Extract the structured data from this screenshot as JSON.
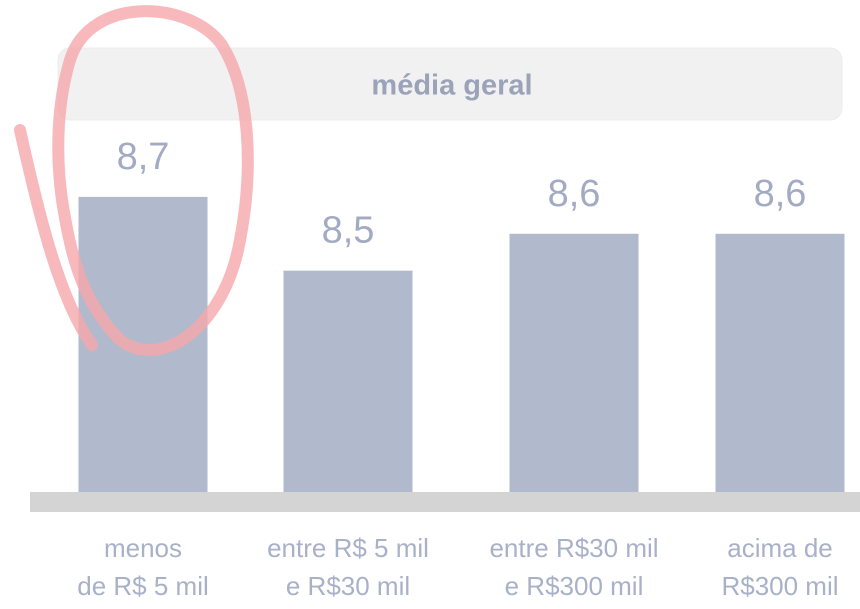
{
  "chart_data": {
    "type": "bar",
    "title": "média geral",
    "categories": [
      [
        "menos",
        "de R$ 5 mil"
      ],
      [
        "entre R$ 5 mil",
        "e R$30 mil"
      ],
      [
        "entre R$30 mil",
        "e R$300 mil"
      ],
      [
        "acima de",
        "R$300 mil"
      ]
    ],
    "values": [
      8.7,
      8.5,
      8.6,
      8.6
    ],
    "value_labels": [
      "8,7",
      "8,5",
      "8,6",
      "8,6"
    ],
    "color": "#b1b9cd",
    "ylim": [
      7.9,
      8.8
    ]
  }
}
